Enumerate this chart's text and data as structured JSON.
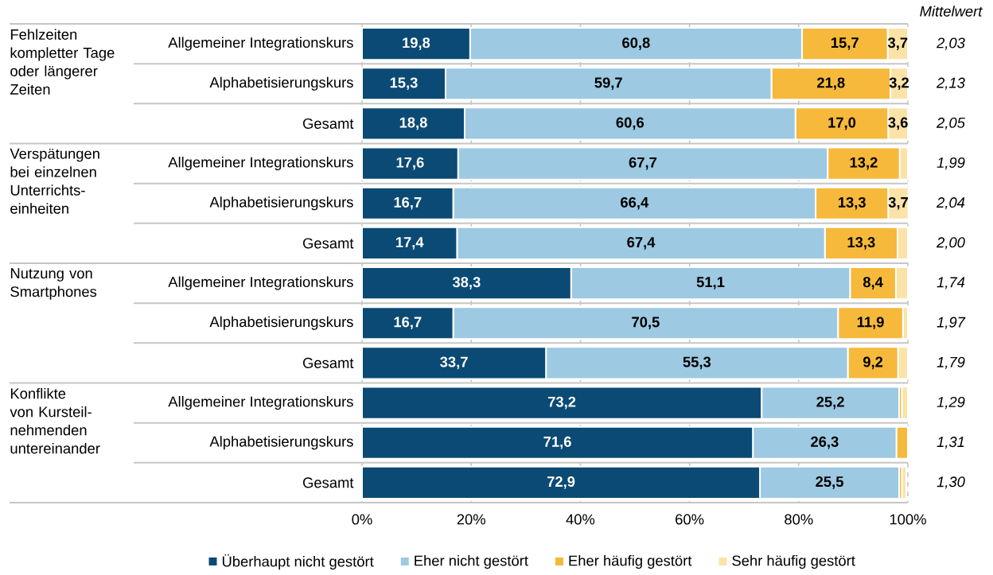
{
  "chart_data": {
    "type": "bar",
    "orientation": "horizontal",
    "stacked": true,
    "categories": [
      "Allgemeiner Integrationskurs",
      "Alphabetisierungskurs",
      "Gesamt",
      "Allgemeiner Integrationskurs",
      "Alphabetisierungskurs",
      "Gesamt",
      "Allgemeiner Integrationskurs",
      "Alphabetisierungskurs",
      "Gesamt",
      "Allgemeiner Integrationskurs",
      "Alphabetisierungskurs",
      "Gesamt"
    ],
    "series": [
      {
        "name": "Überhaupt nicht gestört",
        "color": "#0b4a74",
        "values": [
          19.8,
          15.3,
          18.8,
          17.6,
          16.7,
          17.4,
          38.3,
          16.7,
          33.7,
          73.2,
          71.6,
          72.9
        ],
        "value_labels": [
          "19,8",
          "15,3",
          "18,8",
          "17,6",
          "16,7",
          "17,4",
          "38,3",
          "16,7",
          "33,7",
          "73,2",
          "71,6",
          "72,9"
        ]
      },
      {
        "name": "Eher nicht gestört",
        "color": "#9dc9e2",
        "values": [
          60.8,
          59.7,
          60.6,
          67.7,
          66.4,
          67.4,
          51.1,
          70.5,
          55.3,
          25.2,
          26.3,
          25.5
        ],
        "value_labels": [
          "60,8",
          "59,7",
          "60,6",
          "67,7",
          "66,4",
          "67,4",
          "51,1",
          "70,5",
          "55,3",
          "25,2",
          "26,3",
          "25,5"
        ]
      },
      {
        "name": "Eher häufig gestört",
        "color": "#f6b93b",
        "values": [
          15.7,
          21.8,
          17.0,
          13.2,
          13.3,
          13.3,
          8.4,
          11.9,
          9.2,
          0.5,
          2.1,
          0.5
        ],
        "value_labels": [
          "15,7",
          "21,8",
          "17,0",
          "13,2",
          "13,3",
          "13,3",
          "8,4",
          "11,9",
          "9,2",
          null,
          null,
          null
        ]
      },
      {
        "name": "Sehr häufig gestört",
        "color": "#fbe3a8",
        "values": [
          3.7,
          3.2,
          3.6,
          1.5,
          3.7,
          1.9,
          2.2,
          0.9,
          1.8,
          1.1,
          0,
          0.8
        ],
        "value_labels": [
          "3,7",
          "3,2",
          "3,6",
          null,
          "3,7",
          null,
          null,
          null,
          null,
          null,
          null,
          null
        ]
      }
    ],
    "xlim": [
      0,
      100
    ],
    "xticks": [
      {
        "value": 0,
        "label": "0%"
      },
      {
        "value": 20,
        "label": "20%"
      },
      {
        "value": 40,
        "label": "40%"
      },
      {
        "value": 60,
        "label": "60%"
      },
      {
        "value": 80,
        "label": "80%"
      },
      {
        "value": 100,
        "label": "100%"
      }
    ],
    "grid": "x",
    "legend": "bottom",
    "annotations": [
      "Mittelwert",
      "2,03",
      "2,13",
      "2,05",
      "1,99",
      "2,04",
      "2,00",
      "1,74",
      "1,97",
      "1,79",
      "1,29",
      "1,31",
      "1,30",
      "Fehlzeiten kompletter Tage oder längerer Zeiten",
      "Verspätungen bei einzelnen Unterrichts-einheiten",
      "Nutzung von Smartphones",
      "Konflikte von Kursteil-nehmenden untereinander"
    ]
  }
}
